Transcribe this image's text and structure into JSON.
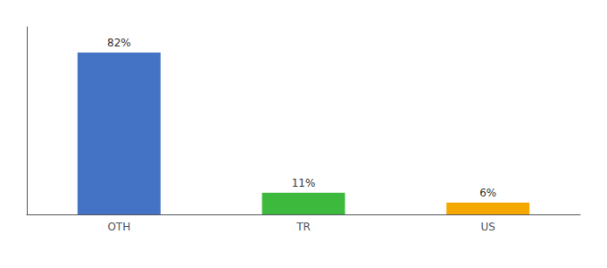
{
  "chart_data": {
    "type": "bar",
    "categories": [
      "OTH",
      "TR",
      "US"
    ],
    "values": [
      82,
      11,
      6
    ],
    "value_labels": [
      "82%",
      "11%",
      "6%"
    ],
    "data_labels": true,
    "colors": [
      "#4472c4",
      "#3dba3d",
      "#f5a800"
    ],
    "ylim": [
      0,
      95
    ],
    "yticks": [],
    "tick_labels": "x",
    "grid": false
  }
}
